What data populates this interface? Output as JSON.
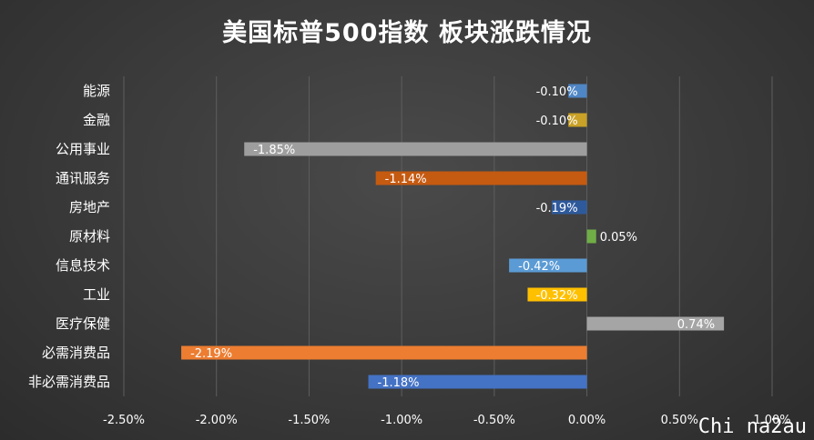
{
  "chart_data": {
    "type": "bar",
    "orientation": "horizontal",
    "title": "美国标普500指数 板块涨跌情况",
    "categories": [
      "能源",
      "金融",
      "公用事业",
      "通讯服务",
      "房地产",
      "原材料",
      "信息技术",
      "工业",
      "医疗保健",
      "必需消费品",
      "非必需消费品"
    ],
    "values": [
      -0.1,
      -0.1,
      -1.85,
      -1.14,
      -0.19,
      0.05,
      -0.42,
      -0.32,
      0.74,
      -2.19,
      -1.18
    ],
    "data_labels": [
      "-0.10%",
      "-0.10%",
      "-1.85%",
      "-1.14%",
      "-0.19%",
      "0.05%",
      "-0.42%",
      "-0.32%",
      "0.74%",
      "-2.19%",
      "-1.18%"
    ],
    "colors": [
      "#4f86c6",
      "#c9a227",
      "#9e9e9e",
      "#c55a11",
      "#2e5a9c",
      "#70ad47",
      "#5b9bd5",
      "#ffc000",
      "#a5a5a5",
      "#ed7d31",
      "#4472c4"
    ],
    "xlim": [
      -2.5,
      1.0
    ],
    "x_ticks": [
      -2.5,
      -2.0,
      -1.5,
      -1.0,
      -0.5,
      0.0,
      0.5,
      1.0
    ],
    "x_tick_labels": [
      "-2.50%",
      "-2.00%",
      "-1.50%",
      "-1.00%",
      "-0.50%",
      "0.00%",
      "0.50%",
      "1.00%"
    ],
    "grid": "vertical",
    "legend": "none"
  },
  "watermark": "Chi na2au"
}
